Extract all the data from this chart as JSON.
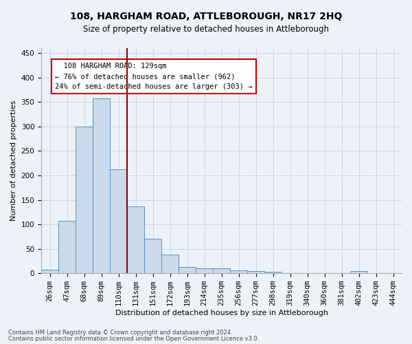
{
  "title": "108, HARGHAM ROAD, ATTLEBOROUGH, NR17 2HQ",
  "subtitle": "Size of property relative to detached houses in Attleborough",
  "xlabel": "Distribution of detached houses by size in Attleborough",
  "ylabel": "Number of detached properties",
  "footnote1": "Contains HM Land Registry data © Crown copyright and database right 2024.",
  "footnote2": "Contains public sector information licensed under the Open Government Licence v3.0.",
  "annotation_line1": "  108 HARGHAM ROAD: 129sqm  ",
  "annotation_line2": "← 76% of detached houses are smaller (962)",
  "annotation_line3": "24% of semi-detached houses are larger (303) →",
  "bar_color": "#c9daea",
  "bar_edge_color": "#5a8fc3",
  "ref_line_color": "#8b0000",
  "categories": [
    "26sqm",
    "47sqm",
    "68sqm",
    "89sqm",
    "110sqm",
    "131sqm",
    "151sqm",
    "172sqm",
    "193sqm",
    "214sqm",
    "235sqm",
    "256sqm",
    "277sqm",
    "298sqm",
    "319sqm",
    "340sqm",
    "360sqm",
    "381sqm",
    "402sqm",
    "423sqm",
    "444sqm"
  ],
  "values": [
    8,
    107,
    300,
    358,
    213,
    137,
    70,
    38,
    13,
    10,
    10,
    6,
    5,
    3,
    0,
    0,
    0,
    0,
    4,
    0,
    0
  ],
  "ylim": [
    0,
    460
  ],
  "yticks": [
    0,
    50,
    100,
    150,
    200,
    250,
    300,
    350,
    400,
    450
  ],
  "figsize": [
    6.0,
    5.0
  ],
  "dpi": 100,
  "bg_color": "#edf2f9",
  "grid_color": "#c8d0de",
  "annotation_box_color": "#ffffff",
  "annotation_box_edge": "#cc0000",
  "title_fontsize": 10,
  "subtitle_fontsize": 8.5,
  "axis_label_fontsize": 8,
  "tick_fontsize": 7.5,
  "footnote_fontsize": 6
}
